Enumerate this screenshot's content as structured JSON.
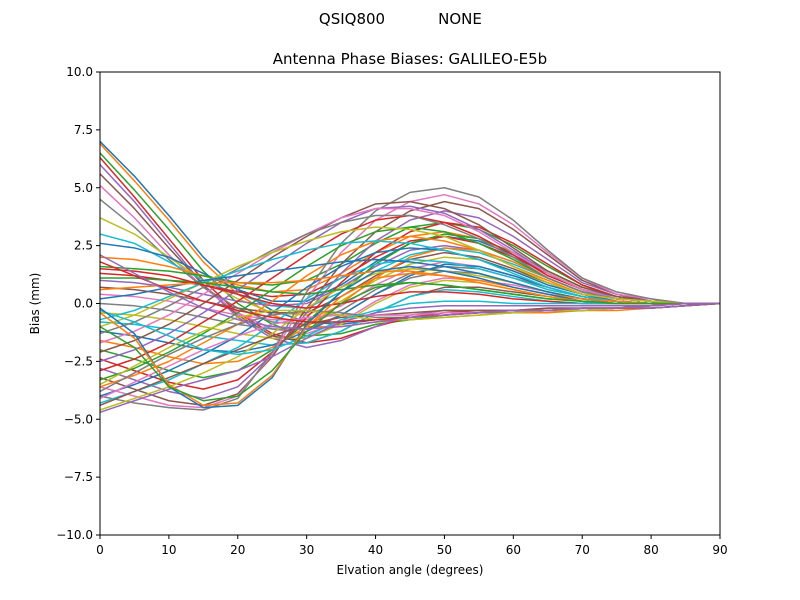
{
  "figure": {
    "suptitle_left": "QSIQ800",
    "suptitle_right": "NONE"
  },
  "chart_data": {
    "type": "line",
    "title": "Antenna Phase Biases: GALILEO-E5b",
    "xlabel": "Elvation angle (degrees)",
    "ylabel": "Bias (mm)",
    "xlim": [
      0,
      90
    ],
    "ylim": [
      -10,
      10
    ],
    "grid": false,
    "legend": "none",
    "xticks": [
      0,
      10,
      20,
      30,
      40,
      50,
      60,
      70,
      80,
      90
    ],
    "xtick_labels": [
      "0",
      "10",
      "20",
      "30",
      "40",
      "50",
      "60",
      "70",
      "80",
      "90"
    ],
    "yticks": [
      10,
      7.5,
      5,
      2.5,
      0,
      -2.5,
      -5,
      -7.5,
      -10
    ],
    "ytick_labels": [
      "10.0",
      "7.5",
      "5.0",
      "2.5",
      "0.0",
      "−2.5",
      "−5.0",
      "−7.5",
      "−10.0"
    ],
    "x": [
      0,
      5,
      10,
      15,
      20,
      25,
      30,
      35,
      40,
      45,
      50,
      55,
      60,
      65,
      70,
      75,
      80,
      85,
      90
    ],
    "colors": [
      "#1f77b4",
      "#ff7f0e",
      "#2ca02c",
      "#d62728",
      "#9467bd",
      "#8c564b",
      "#e377c2",
      "#7f7f7f",
      "#bcbd22",
      "#17becf"
    ],
    "series": [
      {
        "values": [
          7.0,
          5.5,
          3.8,
          2.0,
          0.6,
          -0.3,
          -0.8,
          -0.9,
          -0.7,
          -0.6,
          -0.5,
          -0.4,
          -0.4,
          -0.3,
          -0.3,
          -0.2,
          -0.2,
          -0.1,
          0
        ]
      },
      {
        "values": [
          6.9,
          5.3,
          3.6,
          1.8,
          0.4,
          -0.5,
          -1.0,
          -1.0,
          -0.8,
          -0.7,
          -0.6,
          -0.5,
          -0.4,
          -0.4,
          -0.3,
          -0.3,
          -0.2,
          -0.1,
          0
        ]
      },
      {
        "values": [
          6.5,
          4.9,
          3.2,
          1.4,
          0.0,
          -0.9,
          -1.4,
          -1.3,
          -0.9,
          -0.7,
          -0.5,
          -0.4,
          -0.4,
          -0.3,
          -0.3,
          -0.2,
          -0.2,
          -0.1,
          0
        ]
      },
      {
        "values": [
          6.3,
          4.6,
          2.8,
          1.0,
          -0.4,
          -1.3,
          -1.7,
          -1.5,
          -1.0,
          -0.6,
          -0.4,
          -0.3,
          -0.3,
          -0.3,
          -0.2,
          -0.2,
          -0.2,
          -0.1,
          0
        ]
      },
      {
        "values": [
          6.0,
          4.4,
          2.6,
          0.8,
          -0.6,
          -1.5,
          -1.9,
          -1.6,
          -1.0,
          -0.5,
          -0.3,
          -0.3,
          -0.3,
          -0.2,
          -0.2,
          -0.2,
          -0.2,
          -0.1,
          0
        ]
      },
      {
        "values": [
          5.6,
          4.1,
          2.4,
          0.8,
          -0.5,
          -1.4,
          -1.7,
          -1.2,
          -0.4,
          0.3,
          0.7,
          0.7,
          0.5,
          0.3,
          0.1,
          0.0,
          0.0,
          0.0,
          0
        ]
      },
      {
        "values": [
          5.1,
          3.7,
          2.1,
          0.7,
          -0.4,
          -1.1,
          -1.3,
          -0.8,
          0.1,
          0.8,
          1.1,
          1.0,
          0.8,
          0.5,
          0.2,
          0.1,
          0.0,
          0.0,
          0
        ]
      },
      {
        "values": [
          4.5,
          3.3,
          1.9,
          0.7,
          -0.2,
          -0.8,
          -0.9,
          -0.3,
          0.6,
          1.3,
          1.6,
          1.5,
          1.1,
          0.7,
          0.3,
          0.1,
          0.0,
          0.0,
          0
        ]
      },
      {
        "values": [
          3.7,
          3.0,
          2.0,
          1.0,
          0.2,
          -0.4,
          -0.5,
          0.1,
          1.0,
          1.7,
          2.0,
          1.9,
          1.4,
          0.9,
          0.4,
          0.2,
          0.1,
          0.0,
          0
        ]
      },
      {
        "values": [
          3.0,
          2.6,
          1.8,
          1.0,
          0.4,
          -0.1,
          -0.2,
          0.5,
          1.4,
          2.1,
          2.4,
          2.2,
          1.7,
          1.1,
          0.5,
          0.2,
          0.1,
          0.0,
          0
        ]
      },
      {
        "values": [
          2.6,
          2.4,
          2.0,
          1.3,
          0.6,
          0.1,
          0.1,
          0.8,
          1.8,
          2.6,
          2.9,
          2.7,
          2.1,
          1.3,
          0.6,
          0.2,
          0.1,
          0.0,
          0
        ]
      },
      {
        "values": [
          2.0,
          1.9,
          1.6,
          1.2,
          0.8,
          0.5,
          0.6,
          1.3,
          2.2,
          2.9,
          3.1,
          2.8,
          2.2,
          1.4,
          0.7,
          0.3,
          0.1,
          0.0,
          0
        ]
      },
      {
        "values": [
          1.6,
          1.5,
          1.4,
          1.2,
          0.9,
          0.8,
          1.0,
          1.7,
          2.6,
          3.3,
          3.5,
          3.2,
          2.5,
          1.6,
          0.8,
          0.3,
          0.1,
          0.0,
          0
        ]
      },
      {
        "values": [
          1.3,
          1.2,
          1.0,
          0.8,
          0.5,
          0.3,
          0.4,
          1.1,
          2.0,
          2.7,
          2.9,
          2.6,
          2.0,
          1.3,
          0.6,
          0.2,
          0.1,
          0.0,
          0
        ]
      },
      {
        "values": [
          1.0,
          0.9,
          0.7,
          0.4,
          0.1,
          -0.1,
          0.0,
          0.7,
          1.6,
          2.3,
          2.5,
          2.3,
          1.8,
          1.1,
          0.5,
          0.2,
          0.1,
          0.0,
          0
        ]
      },
      {
        "values": [
          0.7,
          0.6,
          0.4,
          0.1,
          -0.2,
          -0.4,
          -0.4,
          0.3,
          1.2,
          1.9,
          2.2,
          2.0,
          1.5,
          0.9,
          0.4,
          0.1,
          0.0,
          0.0,
          0
        ]
      },
      {
        "values": [
          0.4,
          0.3,
          0.1,
          -0.2,
          -0.5,
          -0.7,
          -0.7,
          -0.1,
          0.8,
          1.5,
          1.8,
          1.6,
          1.2,
          0.7,
          0.3,
          0.1,
          0.0,
          0.0,
          0
        ]
      },
      {
        "values": [
          0.0,
          -0.1,
          -0.3,
          -0.6,
          -0.9,
          -1.1,
          -1.1,
          -0.5,
          0.4,
          1.1,
          1.4,
          1.3,
          0.9,
          0.5,
          0.2,
          0.0,
          0.0,
          0.0,
          0
        ]
      },
      {
        "values": [
          -0.4,
          -0.5,
          -0.7,
          -1.0,
          -1.3,
          -1.5,
          -1.5,
          -0.9,
          0.0,
          0.7,
          1.0,
          0.9,
          0.6,
          0.3,
          0.1,
          0.0,
          0.0,
          0.0,
          0
        ]
      },
      {
        "values": [
          -0.8,
          -0.9,
          -1.1,
          -1.4,
          -1.6,
          -1.8,
          -1.7,
          -1.2,
          -0.4,
          0.3,
          0.6,
          0.5,
          0.3,
          0.1,
          0.0,
          0.0,
          0.0,
          0.0,
          0
        ]
      },
      {
        "values": [
          -1.2,
          -1.4,
          -1.7,
          -2.0,
          -2.1,
          -1.8,
          -1.2,
          -0.5,
          0.4,
          1.2,
          1.7,
          1.6,
          1.2,
          0.7,
          0.3,
          0.1,
          0.0,
          0.0,
          0
        ]
      },
      {
        "values": [
          -1.6,
          -1.9,
          -2.3,
          -2.6,
          -2.5,
          -1.9,
          -1.0,
          0.0,
          1.1,
          2.0,
          2.4,
          2.3,
          1.8,
          1.1,
          0.5,
          0.2,
          0.1,
          0.0,
          0
        ]
      },
      {
        "values": [
          -2.0,
          -2.4,
          -2.9,
          -3.2,
          -2.9,
          -2.0,
          -0.8,
          0.5,
          1.7,
          2.6,
          3.0,
          2.8,
          2.2,
          1.4,
          0.7,
          0.3,
          0.1,
          0.0,
          0
        ]
      },
      {
        "values": [
          -2.4,
          -2.9,
          -3.4,
          -3.7,
          -3.3,
          -2.1,
          -0.6,
          0.9,
          2.2,
          3.1,
          3.5,
          3.3,
          2.6,
          1.7,
          0.8,
          0.3,
          0.1,
          0.0,
          0
        ]
      },
      {
        "values": [
          -2.8,
          -3.3,
          -3.8,
          -4.1,
          -3.6,
          -2.2,
          -0.4,
          1.3,
          2.7,
          3.6,
          4.0,
          3.7,
          2.9,
          1.9,
          0.9,
          0.4,
          0.1,
          0.0,
          0
        ]
      },
      {
        "values": [
          -3.2,
          -3.7,
          -4.2,
          -4.4,
          -3.9,
          -2.3,
          -0.2,
          1.7,
          3.1,
          4.0,
          4.4,
          4.1,
          3.2,
          2.1,
          1.0,
          0.4,
          0.1,
          0.0,
          0
        ]
      },
      {
        "values": [
          -3.6,
          -4.0,
          -4.4,
          -4.5,
          -4.0,
          -2.2,
          0.2,
          2.2,
          3.6,
          4.4,
          4.7,
          4.3,
          3.4,
          2.2,
          1.1,
          0.4,
          0.2,
          0.0,
          0
        ]
      },
      {
        "values": [
          -4.0,
          -4.3,
          -4.5,
          -4.6,
          -4.1,
          -2.1,
          0.5,
          2.6,
          4.0,
          4.8,
          5.0,
          4.6,
          3.6,
          2.3,
          1.1,
          0.5,
          0.2,
          0.0,
          0
        ]
      },
      {
        "values": [
          -4.6,
          -4.1,
          -3.6,
          -3.0,
          -2.3,
          -1.3,
          -0.2,
          0.7,
          1.3,
          1.5,
          1.4,
          1.2,
          0.9,
          0.5,
          0.2,
          0.1,
          0.0,
          0.0,
          0
        ]
      },
      {
        "values": [
          -4.3,
          -3.8,
          -3.3,
          -2.6,
          -1.9,
          -0.9,
          0.2,
          1.1,
          1.7,
          1.9,
          1.8,
          1.5,
          1.1,
          0.6,
          0.3,
          0.1,
          0.0,
          0.0,
          0
        ]
      },
      {
        "values": [
          -4.0,
          -3.5,
          -2.9,
          -2.2,
          -1.4,
          -0.4,
          0.7,
          1.6,
          2.2,
          2.4,
          2.3,
          1.9,
          1.4,
          0.8,
          0.4,
          0.1,
          0.0,
          0.0,
          0
        ]
      },
      {
        "values": [
          -3.6,
          -3.1,
          -2.5,
          -1.7,
          -0.9,
          0.1,
          1.2,
          2.1,
          2.7,
          2.9,
          2.7,
          2.3,
          1.6,
          1.0,
          0.4,
          0.2,
          0.1,
          0.0,
          0
        ]
      },
      {
        "values": [
          -3.3,
          -2.8,
          -2.1,
          -1.3,
          -0.4,
          0.6,
          1.6,
          2.5,
          3.1,
          3.3,
          3.1,
          2.6,
          1.9,
          1.1,
          0.5,
          0.2,
          0.1,
          0.0,
          0
        ]
      },
      {
        "values": [
          -2.9,
          -2.4,
          -1.7,
          -0.8,
          0.1,
          1.1,
          2.1,
          3.0,
          3.6,
          3.8,
          3.5,
          2.9,
          2.1,
          1.2,
          0.6,
          0.2,
          0.1,
          0.0,
          0
        ]
      },
      {
        "values": [
          -2.5,
          -2.0,
          -1.3,
          -0.4,
          0.6,
          1.6,
          2.6,
          3.5,
          4.1,
          4.2,
          3.9,
          3.2,
          2.3,
          1.3,
          0.6,
          0.3,
          0.1,
          0.0,
          0
        ]
      },
      {
        "values": [
          -2.1,
          -1.6,
          -0.9,
          0.0,
          1.0,
          2.0,
          2.9,
          3.7,
          4.3,
          4.4,
          4.1,
          3.4,
          2.4,
          1.4,
          0.7,
          0.3,
          0.1,
          0.0,
          0
        ]
      },
      {
        "values": [
          -1.7,
          -1.2,
          -0.5,
          0.4,
          1.3,
          2.2,
          3.0,
          3.7,
          4.1,
          4.1,
          3.8,
          3.1,
          2.2,
          1.3,
          0.6,
          0.2,
          0.1,
          0.0,
          0
        ]
      },
      {
        "values": [
          -1.3,
          -0.8,
          -0.1,
          0.7,
          1.5,
          2.3,
          3.0,
          3.5,
          3.8,
          3.8,
          3.4,
          2.8,
          2.0,
          1.1,
          0.5,
          0.2,
          0.1,
          0.0,
          0
        ]
      },
      {
        "values": [
          -1.0,
          -0.5,
          0.2,
          0.9,
          1.6,
          2.2,
          2.7,
          3.1,
          3.3,
          3.2,
          2.9,
          2.3,
          1.6,
          0.9,
          0.4,
          0.2,
          0.1,
          0.0,
          0
        ]
      },
      {
        "values": [
          -0.7,
          -0.3,
          0.3,
          0.9,
          1.4,
          1.9,
          2.3,
          2.6,
          2.7,
          2.6,
          2.3,
          1.9,
          1.3,
          0.7,
          0.3,
          0.1,
          0.0,
          0.0,
          0
        ]
      },
      {
        "values": [
          0.2,
          0.4,
          0.7,
          1.0,
          1.2,
          1.4,
          1.6,
          1.8,
          1.9,
          1.8,
          1.6,
          1.3,
          0.9,
          0.5,
          0.2,
          0.1,
          0.0,
          0.0,
          0
        ]
      },
      {
        "values": [
          0.6,
          0.7,
          0.8,
          0.9,
          0.9,
          0.9,
          1.0,
          1.2,
          1.4,
          1.4,
          1.2,
          1.0,
          0.7,
          0.4,
          0.2,
          0.1,
          0.0,
          0.0,
          0
        ]
      },
      {
        "values": [
          1.1,
          1.1,
          1.0,
          0.9,
          0.7,
          0.5,
          0.4,
          0.6,
          0.8,
          0.9,
          0.8,
          0.6,
          0.4,
          0.2,
          0.1,
          0.0,
          0.0,
          0.0,
          0
        ]
      },
      {
        "values": [
          1.5,
          1.4,
          1.2,
          0.8,
          0.4,
          0.0,
          -0.2,
          0.0,
          0.3,
          0.5,
          0.5,
          0.4,
          0.2,
          0.1,
          0.0,
          0.0,
          0.0,
          0.0,
          0
        ]
      },
      {
        "values": [
          -4.7,
          -4.2,
          -3.7,
          -3.3,
          -2.9,
          -2.3,
          -1.5,
          -0.8,
          -0.4,
          -0.2,
          -0.1,
          -0.1,
          -0.1,
          -0.1,
          -0.1,
          -0.1,
          -0.1,
          0.0,
          0
        ]
      },
      {
        "values": [
          -4.4,
          -3.8,
          -3.2,
          -2.6,
          -2.0,
          -1.4,
          -0.9,
          -0.6,
          -0.5,
          -0.4,
          -0.3,
          -0.3,
          -0.3,
          -0.2,
          -0.2,
          -0.2,
          -0.1,
          0.0,
          0
        ]
      },
      {
        "values": [
          -4.1,
          -3.4,
          -2.7,
          -2.0,
          -1.4,
          -0.9,
          -0.6,
          -0.5,
          -0.5,
          -0.5,
          -0.4,
          -0.4,
          -0.3,
          -0.3,
          -0.2,
          -0.2,
          -0.1,
          0.0,
          0
        ]
      },
      {
        "values": [
          -3.8,
          -3.0,
          -2.2,
          -1.5,
          -0.9,
          -0.5,
          -0.3,
          -0.4,
          -0.6,
          -0.6,
          -0.5,
          -0.4,
          -0.4,
          -0.3,
          -0.3,
          -0.2,
          -0.1,
          0.0,
          0
        ]
      },
      {
        "values": [
          -3.5,
          -2.7,
          -1.9,
          -1.2,
          -0.6,
          -0.3,
          -0.3,
          -0.5,
          -0.7,
          -0.7,
          -0.6,
          -0.5,
          -0.4,
          -0.3,
          -0.3,
          -0.2,
          -0.1,
          0.0,
          0
        ]
      },
      {
        "values": [
          -0.3,
          -0.8,
          -1.4,
          -2.0,
          -2.2,
          -2.0,
          -1.4,
          -0.7,
          -0.3,
          0.0,
          0.1,
          0.1,
          0.0,
          0.0,
          0.0,
          0.0,
          0.0,
          0.0,
          0
        ]
      },
      {
        "values": [
          -0.2,
          -1.3,
          -3.6,
          -4.5,
          -4.4,
          -3.2,
          -0.9,
          0.5,
          1.4,
          1.6,
          1.4,
          1.1,
          0.7,
          0.4,
          0.1,
          0.0,
          0.0,
          0.0,
          0
        ]
      },
      {
        "values": [
          -0.4,
          -1.5,
          -3.5,
          -4.4,
          -4.3,
          -3.1,
          -1.0,
          0.3,
          1.1,
          1.3,
          1.2,
          0.9,
          0.6,
          0.3,
          0.1,
          0.0,
          0.0,
          0.0,
          0
        ]
      },
      {
        "values": [
          -1.0,
          -1.9,
          -3.6,
          -4.2,
          -4.0,
          -2.9,
          -1.2,
          0.0,
          0.7,
          0.9,
          0.8,
          0.6,
          0.4,
          0.2,
          0.1,
          0.0,
          0.0,
          0.0,
          0
        ]
      },
      {
        "values": [
          1.8,
          1.2,
          0.6,
          0.1,
          -0.3,
          -0.6,
          -0.8,
          -0.8,
          -0.7,
          -0.6,
          -0.5,
          -0.4,
          -0.3,
          -0.3,
          -0.2,
          -0.2,
          -0.1,
          0.0,
          0
        ]
      },
      {
        "values": [
          2.1,
          1.3,
          0.5,
          -0.2,
          -0.7,
          -1.0,
          -1.1,
          -1.0,
          -0.8,
          -0.6,
          -0.5,
          -0.4,
          -0.3,
          -0.3,
          -0.2,
          -0.2,
          -0.1,
          0.0,
          0
        ]
      }
    ]
  }
}
